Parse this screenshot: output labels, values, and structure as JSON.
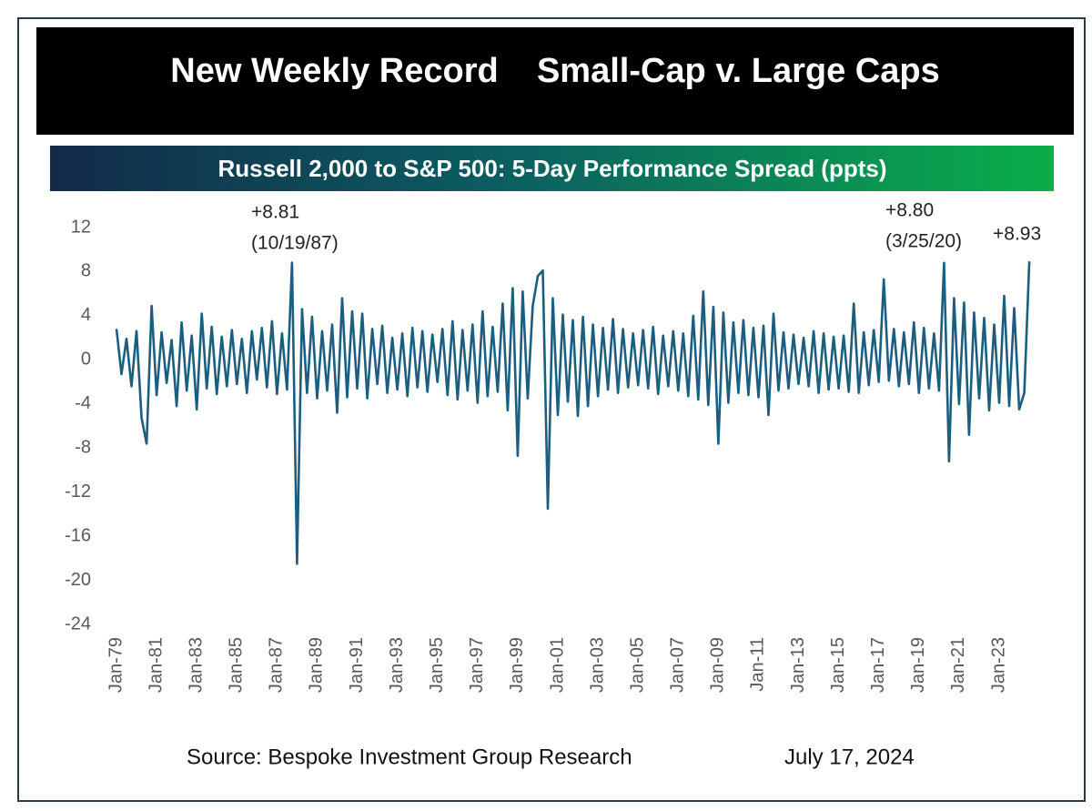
{
  "chart_data": {
    "type": "line",
    "title": "New Weekly Record    Small-Cap v. Large Caps",
    "subtitle": "Russell 2,000 to S&P 500: 5-Day Performance Spread (ppts)",
    "annotations": [
      "+8.81",
      "(10/19/87)",
      "+8.80",
      "(3/25/20)",
      "+8.93"
    ],
    "source": "Source: Bespoke Investment Group Research",
    "date": "July 17, 2024",
    "color": "#1b5e80",
    "ylim": [
      -24,
      12
    ],
    "yticks": [
      12,
      8,
      4,
      0,
      -4,
      -8,
      -12,
      -16,
      -20,
      -24
    ],
    "categories": [
      "Jan-79",
      null,
      null,
      null,
      null,
      null,
      null,
      null,
      "Jan-81",
      null,
      null,
      null,
      null,
      null,
      null,
      null,
      "Jan-83",
      null,
      null,
      null,
      null,
      null,
      null,
      null,
      "Jan-85",
      null,
      null,
      null,
      null,
      null,
      null,
      null,
      "Jan-87",
      null,
      null,
      null,
      null,
      null,
      null,
      null,
      "Jan-89",
      null,
      null,
      null,
      null,
      null,
      null,
      null,
      "Jan-91",
      null,
      null,
      null,
      null,
      null,
      null,
      null,
      "Jan-93",
      null,
      null,
      null,
      null,
      null,
      null,
      null,
      "Jan-95",
      null,
      null,
      null,
      null,
      null,
      null,
      null,
      "Jan-97",
      null,
      null,
      null,
      null,
      null,
      null,
      null,
      "Jan-99",
      null,
      null,
      null,
      null,
      null,
      null,
      null,
      "Jan-01",
      null,
      null,
      null,
      null,
      null,
      null,
      null,
      "Jan-03",
      null,
      null,
      null,
      null,
      null,
      null,
      null,
      "Jan-05",
      null,
      null,
      null,
      null,
      null,
      null,
      null,
      "Jan-07",
      null,
      null,
      null,
      null,
      null,
      null,
      null,
      "Jan-09",
      null,
      null,
      null,
      null,
      null,
      null,
      null,
      "Jan-11",
      null,
      null,
      null,
      null,
      null,
      null,
      null,
      "Jan-13",
      null,
      null,
      null,
      null,
      null,
      null,
      null,
      "Jan-15",
      null,
      null,
      null,
      null,
      null,
      null,
      null,
      "Jan-17",
      null,
      null,
      null,
      null,
      null,
      null,
      null,
      "Jan-19",
      null,
      null,
      null,
      null,
      null,
      null,
      null,
      "Jan-21",
      null,
      null,
      null,
      null,
      null,
      null,
      null,
      "Jan-23",
      null,
      null,
      null,
      null,
      null,
      null
    ],
    "values": [
      2.8,
      -1.3,
      1.9,
      -2.4,
      2.6,
      -5.3,
      -7.6,
      4.9,
      -3.2,
      2.5,
      -2.1,
      1.8,
      -4.2,
      3.4,
      -2.8,
      2.2,
      -4.5,
      4.2,
      -2.6,
      3.0,
      -3.1,
      2.1,
      -2.4,
      2.7,
      -2.2,
      1.9,
      -3.0,
      2.6,
      -1.8,
      2.9,
      -2.5,
      3.5,
      -3.1,
      2.4,
      -2.7,
      8.81,
      -18.5,
      4.6,
      -3.0,
      3.9,
      -3.5,
      2.6,
      -2.8,
      3.2,
      -4.8,
      5.6,
      -3.4,
      4.4,
      -2.6,
      4.2,
      -3.5,
      2.8,
      -2.2,
      3.1,
      -3.0,
      2.0,
      -2.7,
      2.4,
      -3.3,
      2.9,
      -2.5,
      2.6,
      -2.9,
      2.3,
      -2.0,
      2.8,
      -3.2,
      3.5,
      -3.6,
      2.7,
      -2.8,
      3.2,
      -3.9,
      4.4,
      -3.3,
      3.0,
      -2.9,
      5.1,
      -4.6,
      6.5,
      -8.7,
      6.2,
      -3.5,
      4.9,
      7.6,
      8.1,
      -13.5,
      5.6,
      -5.0,
      4.1,
      -3.8,
      3.6,
      -5.1,
      3.9,
      -4.2,
      3.2,
      -3.3,
      2.9,
      -2.7,
      3.7,
      -3.0,
      2.8,
      -2.5,
      2.4,
      -2.3,
      2.7,
      -2.6,
      3.0,
      -3.1,
      2.2,
      -2.4,
      2.6,
      -2.8,
      2.4,
      -3.3,
      4.0,
      -3.6,
      6.2,
      -4.1,
      4.8,
      -7.6,
      4.3,
      -3.9,
      3.4,
      -3.0,
      3.6,
      -3.2,
      2.9,
      -3.4,
      3.1,
      -5.0,
      4.2,
      -2.8,
      2.5,
      -2.6,
      2.3,
      -2.2,
      2.0,
      -2.4,
      2.6,
      -3.0,
      2.4,
      -2.7,
      2.1,
      -2.6,
      2.2,
      -2.9,
      5.1,
      -3.0,
      2.5,
      -2.3,
      2.7,
      -2.0,
      7.3,
      -1.9,
      2.8,
      -2.4,
      2.5,
      -2.2,
      3.4,
      -3.0,
      2.9,
      -2.6,
      2.4,
      -2.8,
      8.8,
      -9.2,
      5.6,
      -4.0,
      5.2,
      -6.8,
      4.3,
      -3.5,
      3.8,
      -4.6,
      3.2,
      -3.9,
      5.8,
      -4.2,
      4.7,
      -4.5,
      -3.0,
      8.93
    ]
  }
}
